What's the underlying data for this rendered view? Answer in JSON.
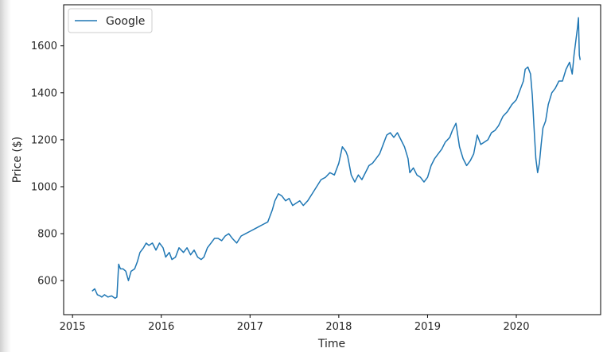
{
  "chart_data": {
    "type": "line",
    "title": "",
    "xlabel": "Time",
    "ylabel": "Price ($)",
    "xlim": [
      2014.9,
      2020.95
    ],
    "ylim": [
      455,
      1775
    ],
    "x_ticks": [
      2015,
      2016,
      2017,
      2018,
      2019,
      2020
    ],
    "x_tick_labels": [
      "2015",
      "2016",
      "2017",
      "2018",
      "2019",
      "2020"
    ],
    "y_ticks": [
      600,
      800,
      1000,
      1200,
      1400,
      1600
    ],
    "y_tick_labels": [
      "600",
      "800",
      "1000",
      "1200",
      "1400",
      "1600"
    ],
    "grid": false,
    "legend_position": "top-left",
    "series": [
      {
        "name": "Google",
        "color": "#1f77b4",
        "x": [
          2015.22,
          2015.25,
          2015.28,
          2015.31,
          2015.33,
          2015.36,
          2015.4,
          2015.44,
          2015.48,
          2015.5,
          2015.51,
          2015.52,
          2015.54,
          2015.57,
          2015.6,
          2015.63,
          2015.66,
          2015.7,
          2015.73,
          2015.76,
          2015.8,
          2015.83,
          2015.86,
          2015.9,
          2015.94,
          2015.98,
          2016.02,
          2016.05,
          2016.09,
          2016.12,
          2016.16,
          2016.2,
          2016.25,
          2016.29,
          2016.33,
          2016.37,
          2016.41,
          2016.45,
          2016.48,
          2016.52,
          2016.56,
          2016.6,
          2016.64,
          2016.68,
          2016.72,
          2016.76,
          2016.8,
          2016.85,
          2016.9,
          2016.95,
          2017.0,
          2017.05,
          2017.1,
          2017.15,
          2017.2,
          2017.25,
          2017.28,
          2017.32,
          2017.36,
          2017.4,
          2017.44,
          2017.48,
          2017.52,
          2017.56,
          2017.6,
          2017.65,
          2017.7,
          2017.75,
          2017.8,
          2017.85,
          2017.9,
          2017.95,
          2018.0,
          2018.04,
          2018.08,
          2018.1,
          2018.14,
          2018.18,
          2018.22,
          2018.26,
          2018.3,
          2018.34,
          2018.38,
          2018.42,
          2018.46,
          2018.5,
          2018.54,
          2018.58,
          2018.62,
          2018.66,
          2018.7,
          2018.74,
          2018.78,
          2018.8,
          2018.84,
          2018.88,
          2018.92,
          2018.96,
          2019.0,
          2019.04,
          2019.08,
          2019.12,
          2019.16,
          2019.2,
          2019.25,
          2019.28,
          2019.32,
          2019.36,
          2019.4,
          2019.44,
          2019.48,
          2019.52,
          2019.56,
          2019.6,
          2019.64,
          2019.68,
          2019.72,
          2019.76,
          2019.8,
          2019.85,
          2019.9,
          2019.95,
          2020.0,
          2020.04,
          2020.08,
          2020.1,
          2020.13,
          2020.16,
          2020.18,
          2020.2,
          2020.22,
          2020.24,
          2020.26,
          2020.28,
          2020.3,
          2020.33,
          2020.36,
          2020.4,
          2020.44,
          2020.48,
          2020.52,
          2020.56,
          2020.6,
          2020.63,
          2020.65,
          2020.67,
          2020.69,
          2020.7,
          2020.71,
          2020.72
        ],
        "y": [
          555,
          565,
          540,
          535,
          530,
          540,
          530,
          535,
          525,
          530,
          600,
          670,
          650,
          650,
          640,
          600,
          640,
          650,
          680,
          720,
          740,
          760,
          750,
          760,
          730,
          760,
          740,
          700,
          720,
          690,
          700,
          740,
          720,
          740,
          710,
          730,
          700,
          690,
          700,
          740,
          760,
          780,
          780,
          770,
          790,
          800,
          780,
          760,
          790,
          800,
          810,
          820,
          830,
          840,
          850,
          900,
          940,
          970,
          960,
          940,
          950,
          920,
          930,
          940,
          920,
          940,
          970,
          1000,
          1030,
          1040,
          1060,
          1050,
          1100,
          1170,
          1150,
          1130,
          1050,
          1020,
          1050,
          1030,
          1060,
          1090,
          1100,
          1120,
          1140,
          1180,
          1220,
          1230,
          1210,
          1230,
          1200,
          1170,
          1120,
          1060,
          1080,
          1050,
          1040,
          1020,
          1040,
          1090,
          1120,
          1140,
          1160,
          1190,
          1210,
          1240,
          1270,
          1170,
          1120,
          1090,
          1110,
          1140,
          1220,
          1180,
          1190,
          1200,
          1230,
          1240,
          1260,
          1300,
          1320,
          1350,
          1370,
          1410,
          1450,
          1500,
          1510,
          1480,
          1390,
          1250,
          1120,
          1060,
          1100,
          1180,
          1250,
          1280,
          1350,
          1400,
          1420,
          1450,
          1450,
          1500,
          1530,
          1480,
          1560,
          1620,
          1680,
          1720,
          1560,
          1540
        ]
      }
    ]
  }
}
